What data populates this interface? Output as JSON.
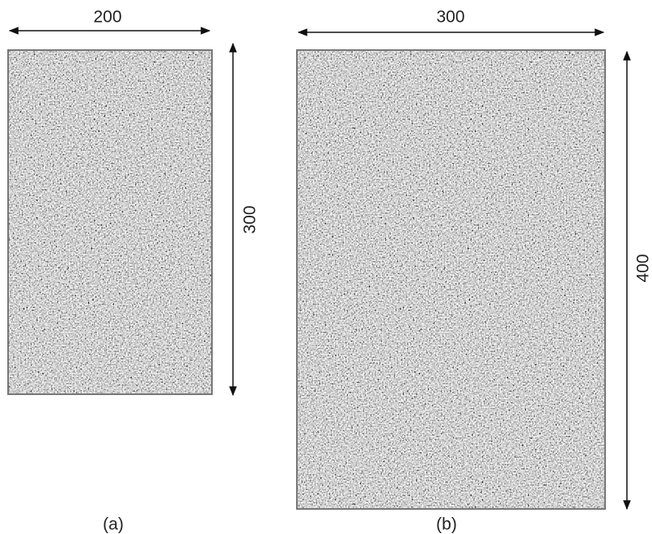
{
  "panels": [
    {
      "label": "(a)",
      "width_label": 200,
      "height_label": 300
    },
    {
      "label": "(b)",
      "width_label": 300,
      "height_label": 400
    }
  ]
}
